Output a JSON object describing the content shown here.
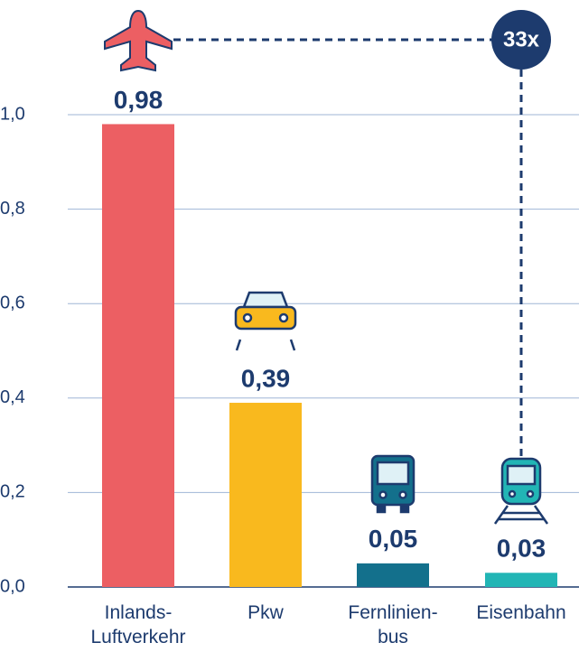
{
  "chart_data": {
    "type": "bar",
    "categories": [
      "Inlands-\nLuftverkehr",
      "Pkw",
      "Fernlinien-\nbus",
      "Eisenbahn"
    ],
    "values": [
      0.98,
      0.39,
      0.05,
      0.03
    ],
    "value_labels": [
      "0,98",
      "0,39",
      "0,05",
      "0,03"
    ],
    "colors": [
      "#ec5f63",
      "#f9b91e",
      "#13708c",
      "#22b5b5"
    ],
    "ylim": [
      0,
      1
    ],
    "yticks": [
      {
        "value": 0,
        "label": "0,0"
      },
      {
        "value": 0.2,
        "label": "0,2"
      },
      {
        "value": 0.4,
        "label": "0,4"
      },
      {
        "value": 0.6,
        "label": "0,6"
      },
      {
        "value": 0.8,
        "label": "0,8"
      },
      {
        "value": 1,
        "label": "1,0"
      }
    ],
    "grid": true,
    "annotation": "33x"
  }
}
